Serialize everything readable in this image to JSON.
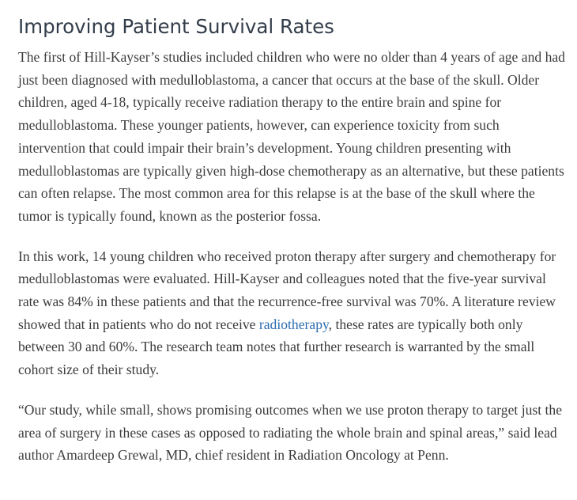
{
  "article": {
    "heading": "Improving Patient Survival Rates",
    "paragraphs": [
      {
        "text": "The first of Hill-Kayser’s studies included children who were no older than 4 years of age and had just been diagnosed with medulloblastoma, a cancer that occurs at the base of the skull. Older children, aged 4-18, typically receive radiation therapy to the entire brain and spine for medulloblastoma. These younger patients, however, can experience toxicity from such intervention that could impair their brain’s development. Young children presenting with medulloblastomas are typically given high-dose chemotherapy as an alternative, but these patients can often relapse. The most common area for this relapse is at the base of the skull where the tumor is typically found, known as the posterior fossa."
      },
      {
        "text_before_link": "In this work, 14 young children who received proton therapy after surgery and chemotherapy for medulloblastomas were evaluated. Hill-Kayser and colleagues noted that the five-year survival rate was 84% in these patients and that the recurrence-free survival was 70%. A literature review showed that in patients who do not receive ",
        "link_text": "radiotherapy",
        "text_after_link": ", these rates are typically both only between 30 and 60%. The research team notes that further research is warranted by the small cohort size of their study."
      },
      {
        "text": "“Our study, while small, shows promising outcomes when we use proton therapy to target just the area of surgery in these cases as opposed to radiating the whole brain and spinal areas,” said lead author Amardeep Grewal, MD, chief resident in Radiation Oncology at Penn."
      }
    ]
  }
}
